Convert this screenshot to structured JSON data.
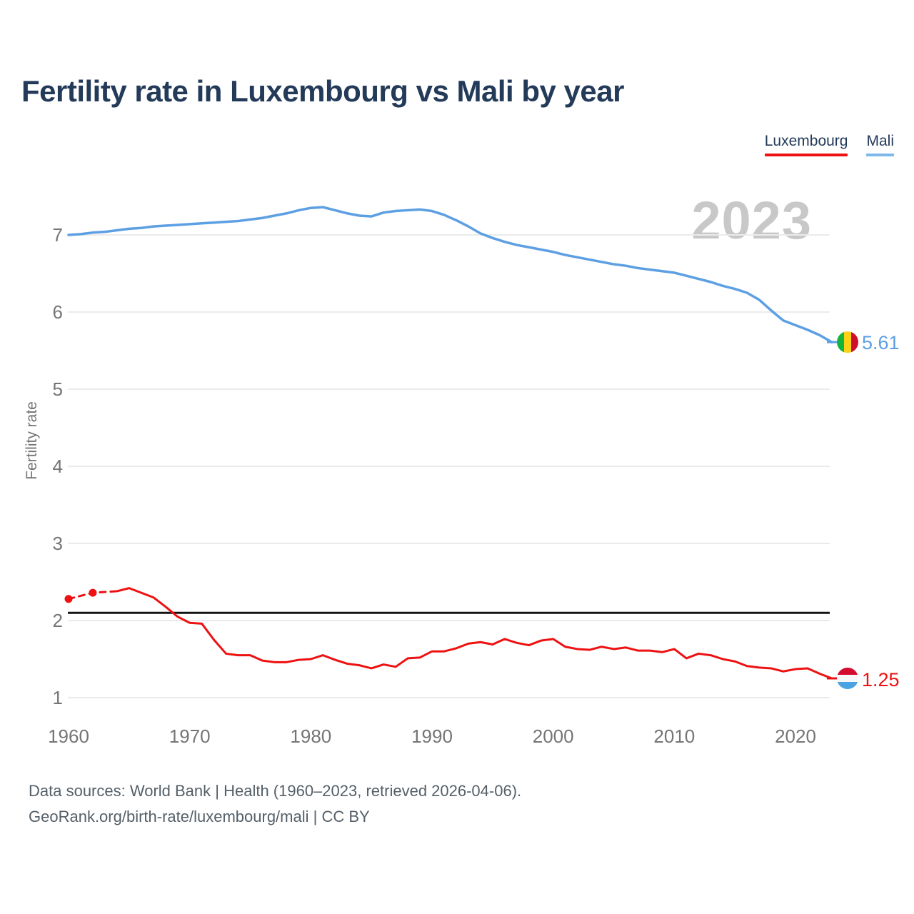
{
  "title": "Fertility rate in Luxembourg vs Mali by year",
  "legend": {
    "items": [
      {
        "label": "Luxembourg",
        "underline_color": "#ee1111"
      },
      {
        "label": "Mali",
        "underline_color": "#7db9ea"
      }
    ]
  },
  "watermark_year": "2023",
  "y_axis_label": "Fertility rate",
  "footer": {
    "line1": "Data sources: World Bank | Health (1960–2023, retrieved 2026-04-06).",
    "line2": "GeoRank.org/birth-rate/luxembourg/mali | CC BY"
  },
  "chart_data": {
    "type": "line",
    "title": "Fertility rate in Luxembourg vs Mali by year",
    "xlabel": "",
    "ylabel": "Fertility rate",
    "xlim": [
      1960,
      2023
    ],
    "ylim": [
      1,
      7.6
    ],
    "x_ticks": [
      1960,
      1970,
      1980,
      1990,
      2000,
      2010,
      2020
    ],
    "y_ticks": [
      1,
      2,
      3,
      4,
      5,
      6,
      7
    ],
    "grid": "horizontal",
    "gridline_color": "#ebebeb",
    "axis_text_color": "#757575",
    "watermark_color": "#c8c8c8",
    "reference_line": {
      "value": 2.1,
      "color": "#141414"
    },
    "legend_position": "top-right",
    "years": [
      1960,
      1961,
      1962,
      1963,
      1964,
      1965,
      1966,
      1967,
      1968,
      1969,
      1970,
      1971,
      1972,
      1973,
      1974,
      1975,
      1976,
      1977,
      1978,
      1979,
      1980,
      1981,
      1982,
      1983,
      1984,
      1985,
      1986,
      1987,
      1988,
      1989,
      1990,
      1991,
      1992,
      1993,
      1994,
      1995,
      1996,
      1997,
      1998,
      1999,
      2000,
      2001,
      2002,
      2003,
      2004,
      2005,
      2006,
      2007,
      2008,
      2009,
      2010,
      2011,
      2012,
      2013,
      2014,
      2015,
      2016,
      2017,
      2018,
      2019,
      2020,
      2021,
      2022,
      2023
    ],
    "series": [
      {
        "name": "Mali",
        "color": "#5d9fe3",
        "end_label": "5.61",
        "end_value": 5.61,
        "flag": "mali",
        "flag_colors": [
          "#14B53A",
          "#FCD116",
          "#CE1126"
        ],
        "values": [
          7.0,
          7.01,
          7.03,
          7.04,
          7.06,
          7.08,
          7.09,
          7.11,
          7.12,
          7.13,
          7.14,
          7.15,
          7.16,
          7.17,
          7.18,
          7.2,
          7.22,
          7.25,
          7.28,
          7.32,
          7.35,
          7.36,
          7.32,
          7.28,
          7.25,
          7.24,
          7.29,
          7.31,
          7.32,
          7.33,
          7.31,
          7.26,
          7.19,
          7.11,
          7.02,
          6.96,
          6.91,
          6.87,
          6.84,
          6.81,
          6.78,
          6.74,
          6.71,
          6.68,
          6.65,
          6.62,
          6.6,
          6.57,
          6.55,
          6.53,
          6.51,
          6.47,
          6.43,
          6.39,
          6.34,
          6.3,
          6.25,
          6.16,
          6.02,
          5.89,
          5.83,
          5.77,
          5.7,
          5.61
        ]
      },
      {
        "name": "Luxembourg",
        "color": "#ee1111",
        "end_label": "1.25",
        "end_value": 1.25,
        "flag": "luxembourg",
        "flag_colors": [
          "#d50b2e",
          "#f7f7f7",
          "#4aa3e3"
        ],
        "dashed_until_year": 1964,
        "marker_years": [
          1960,
          1962
        ],
        "values": [
          2.28,
          2.32,
          2.36,
          2.37,
          2.38,
          2.42,
          2.36,
          2.3,
          2.18,
          2.05,
          1.97,
          1.96,
          1.75,
          1.57,
          1.55,
          1.55,
          1.48,
          1.46,
          1.46,
          1.49,
          1.5,
          1.55,
          1.49,
          1.44,
          1.42,
          1.38,
          1.43,
          1.4,
          1.51,
          1.52,
          1.6,
          1.6,
          1.64,
          1.7,
          1.72,
          1.69,
          1.76,
          1.71,
          1.68,
          1.74,
          1.76,
          1.66,
          1.63,
          1.62,
          1.66,
          1.63,
          1.65,
          1.61,
          1.61,
          1.59,
          1.63,
          1.51,
          1.57,
          1.55,
          1.5,
          1.47,
          1.41,
          1.39,
          1.38,
          1.34,
          1.37,
          1.38,
          1.31,
          1.25
        ]
      }
    ]
  }
}
